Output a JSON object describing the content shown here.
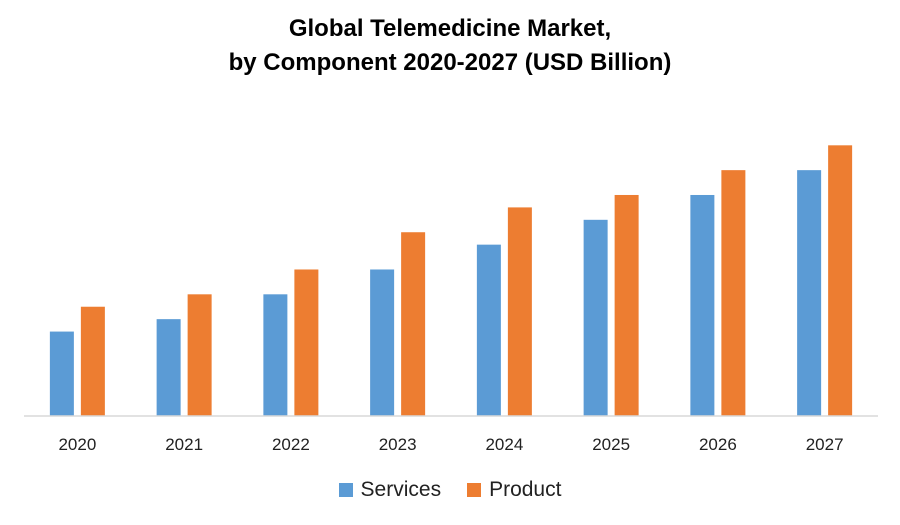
{
  "chart_data": {
    "type": "bar",
    "title_line1": "Global Telemedicine Market,",
    "title_line2": "by Component 2020-2027 (USD Billion)",
    "xlabel": "",
    "ylabel": "",
    "categories": [
      "2020",
      "2021",
      "2022",
      "2023",
      "2024",
      "2025",
      "2026",
      "2027"
    ],
    "series": [
      {
        "name": "Services",
        "color": "#5B9BD5",
        "values": [
          34,
          39,
          49,
          59,
          69,
          79,
          89,
          99
        ]
      },
      {
        "name": "Product",
        "color": "#ED7D31",
        "values": [
          44,
          49,
          59,
          74,
          84,
          89,
          99,
          109
        ]
      }
    ],
    "ylim": [
      0,
      120
    ],
    "grid": false,
    "legend": "bottom"
  }
}
